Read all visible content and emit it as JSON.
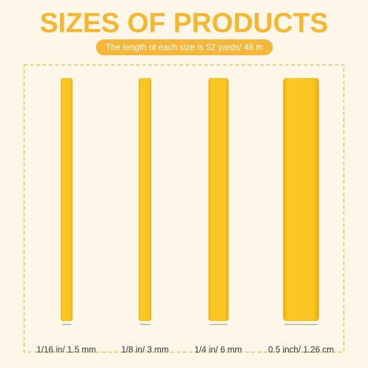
{
  "header": {
    "title": "SIZES OF PRODUCTS",
    "subtitle": "The length of each size is 52 yards/ 48 m"
  },
  "items": [
    {
      "label": "1/16 in/ 1.5 mm"
    },
    {
      "label": "1/8 in/ 3 mm"
    },
    {
      "label": "1/4 in/ 6 mm"
    },
    {
      "label": "0.5 inch/ 1.26 cm"
    }
  ]
}
